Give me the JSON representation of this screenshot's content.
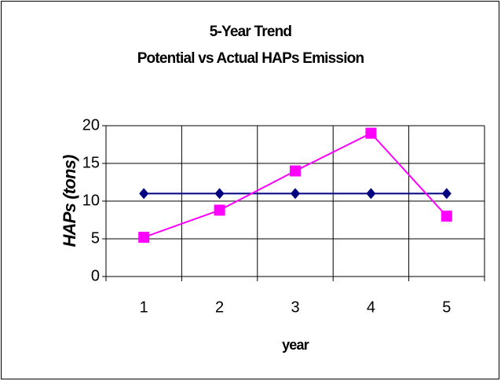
{
  "chart_data": {
    "type": "line",
    "title": "5-Year Trend",
    "subtitle": "Potential vs Actual HAPs Emission",
    "x_label": "year",
    "y_label": "HAPs (tons)",
    "categories": [
      1,
      2,
      3,
      4,
      5
    ],
    "series": [
      {
        "color": "#000080",
        "marker": "diamond",
        "values": [
          11,
          11,
          11,
          11,
          11
        ]
      },
      {
        "color": "#ff00ff",
        "marker": "square",
        "values": [
          5.2,
          8.8,
          14,
          19,
          8
        ]
      }
    ],
    "ylim": [
      0,
      20
    ],
    "yticks": [
      0,
      5,
      10,
      15,
      20
    ],
    "grid": true
  }
}
